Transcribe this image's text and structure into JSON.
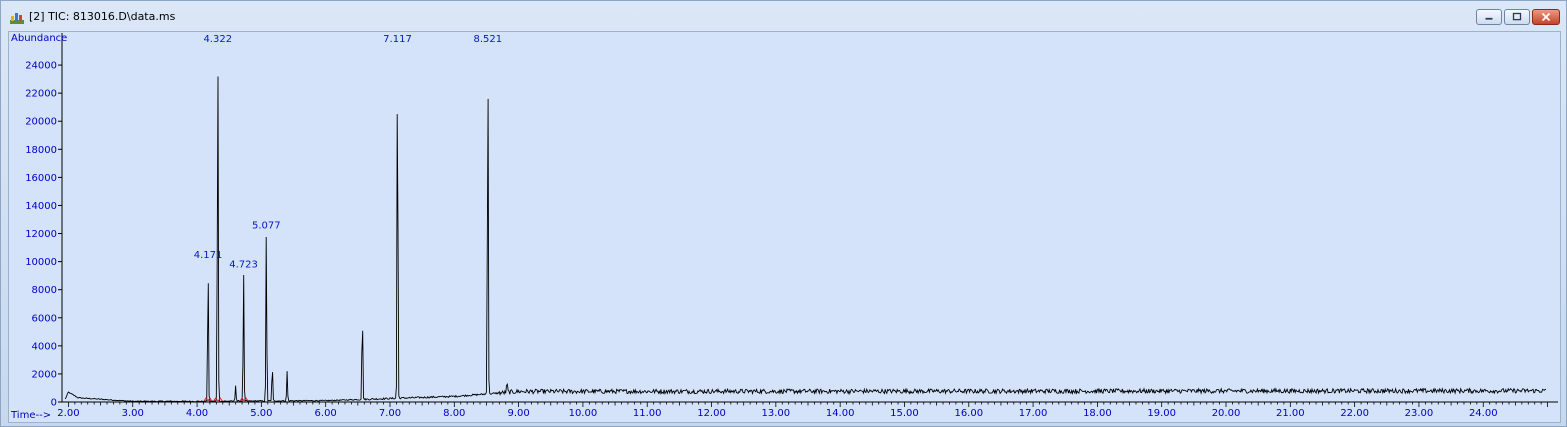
{
  "window": {
    "title": "[2] TIC: 813016.D\\data.ms",
    "icon": "chromatogram-app-icon",
    "controls": [
      "minimize",
      "restore",
      "close"
    ]
  },
  "colors": {
    "plot_background": "#d4e3f9",
    "trace": "#000000",
    "axis_text": "#0000c8",
    "peak_label": "#0018c8",
    "integration_mark": "#d02020"
  },
  "chart_data": {
    "type": "line",
    "title": "",
    "ylabel": "Abundance",
    "xlabel": "Time-->",
    "xlim": [
      1.9,
      25.1
    ],
    "ylim": [
      0,
      26000
    ],
    "x_ticks": [
      2,
      3,
      4,
      5,
      6,
      7,
      8,
      9,
      10,
      11,
      12,
      13,
      14,
      15,
      16,
      17,
      18,
      19,
      20,
      21,
      22,
      23,
      24
    ],
    "x_tick_labels": [
      "2.00",
      "3.00",
      "4.00",
      "5.00",
      "6.00",
      "7.00",
      "8.00",
      "9.00",
      "10.00",
      "11.00",
      "12.00",
      "13.00",
      "14.00",
      "15.00",
      "16.00",
      "17.00",
      "18.00",
      "19.00",
      "20.00",
      "21.00",
      "22.00",
      "23.00",
      "24.00"
    ],
    "y_ticks": [
      0,
      2000,
      4000,
      6000,
      8000,
      10000,
      12000,
      14000,
      16000,
      18000,
      20000,
      22000,
      24000
    ],
    "y_tick_labels": [
      "0",
      "2000",
      "4000",
      "6000",
      "8000",
      "10000",
      "12000",
      "14000",
      "16000",
      "18000",
      "20000",
      "22000",
      "24000"
    ],
    "grid": false,
    "legend": "none",
    "labeled_peaks": [
      {
        "label": "4.171",
        "x": 4.171,
        "y": 10200
      },
      {
        "label": "4.322",
        "x": 4.322,
        "y": 25800
      },
      {
        "label": "4.723",
        "x": 4.723,
        "y": 9500
      },
      {
        "label": "5.077",
        "x": 5.077,
        "y": 12300
      },
      {
        "label": "7.117",
        "x": 7.117,
        "y": 26000
      },
      {
        "label": "8.521",
        "x": 8.521,
        "y": 26000
      }
    ],
    "minor_peaks": [
      {
        "x": 4.6,
        "y": 1200
      },
      {
        "x": 5.17,
        "y": 2800
      },
      {
        "x": 5.4,
        "y": 2200
      },
      {
        "x": 6.57,
        "y": 6700
      },
      {
        "x": 8.82,
        "y": 1400
      }
    ],
    "baseline": [
      {
        "x": 1.95,
        "y": 200
      },
      {
        "x": 2.0,
        "y": 700
      },
      {
        "x": 2.15,
        "y": 300
      },
      {
        "x": 3.0,
        "y": 50
      },
      {
        "x": 4.0,
        "y": 50
      },
      {
        "x": 6.0,
        "y": 100
      },
      {
        "x": 7.0,
        "y": 250
      },
      {
        "x": 8.0,
        "y": 400
      },
      {
        "x": 8.6,
        "y": 600
      },
      {
        "x": 9.0,
        "y": 750
      },
      {
        "x": 25.0,
        "y": 800
      }
    ]
  }
}
